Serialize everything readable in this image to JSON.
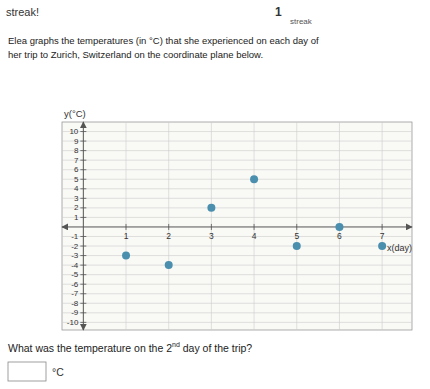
{
  "chart_data": {
    "type": "scatter",
    "x": [
      1,
      2,
      3,
      4,
      5,
      6,
      7
    ],
    "values": [
      -3,
      -4,
      2,
      5,
      -2,
      0,
      -2
    ],
    "color": "#4a8fad",
    "xlim": [
      -0.5,
      7.7
    ],
    "ylim": [
      -10.8,
      11.0
    ],
    "xticks": [
      1,
      2,
      3,
      4,
      5,
      6,
      7
    ],
    "yticks": [
      -10,
      -9,
      -8,
      -7,
      -6,
      -5,
      -4,
      -3,
      -2,
      -1,
      1,
      2,
      3,
      4,
      5,
      6,
      7,
      8,
      9,
      10
    ],
    "xlabel": "x(day)",
    "ylabel": "y(°C)",
    "grid": true,
    "annotations": [
      "streak!",
      "1",
      "streak",
      "Elea graphs the temperatures (in  °C) that she experienced on each day of",
      "her trip to Zurich, Switzerland on the coordinate plane below.",
      "What was the temperature on the 2",
      "nd",
      " day of the trip?",
      "°C"
    ]
  }
}
